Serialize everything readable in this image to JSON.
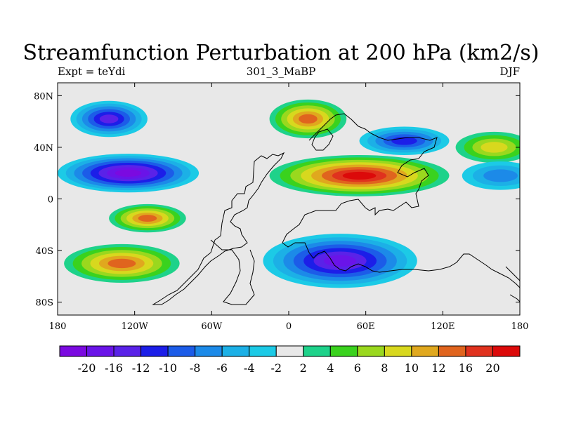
{
  "title": "Streamfunction Perturbation at 200 hPa (km2/s)",
  "subtitle_left": "Expt = teYdi",
  "subtitle_center": "301_3_MaBP",
  "subtitle_right": "DJF",
  "chart_data": {
    "type": "heatmap",
    "title": "Streamfunction Perturbation at 200 hPa (km2/s)",
    "variable": "Streamfunction Perturbation",
    "level": "200 hPa",
    "units": "km2/s",
    "season": "DJF",
    "experiment": "teYdi",
    "dataset": "301_3_MaBP",
    "lon_range": [
      -180,
      180
    ],
    "lat_range": [
      -90,
      90
    ],
    "x_ticks": [
      {
        "value": -180,
        "label": "180"
      },
      {
        "value": -120,
        "label": "120W"
      },
      {
        "value": -60,
        "label": "60W"
      },
      {
        "value": 0,
        "label": "0"
      },
      {
        "value": 60,
        "label": "60E"
      },
      {
        "value": 120,
        "label": "120E"
      },
      {
        "value": 180,
        "label": "180"
      }
    ],
    "y_ticks": [
      {
        "value": 80,
        "label": "80N"
      },
      {
        "value": 40,
        "label": "40N"
      },
      {
        "value": 0,
        "label": "0"
      },
      {
        "value": -40,
        "label": "40S"
      },
      {
        "value": -80,
        "label": "80S"
      }
    ],
    "colorbar_levels": [
      -20,
      -16,
      -12,
      -10,
      -8,
      -6,
      -4,
      -2,
      2,
      4,
      6,
      8,
      10,
      12,
      16,
      20
    ],
    "colorbar_labels": [
      "-20",
      "-16",
      "-12",
      "-10",
      "-8",
      "-6",
      "-4",
      "-2",
      "2",
      "4",
      "6",
      "8",
      "10",
      "12",
      "16",
      "20"
    ],
    "colors": [
      "#7b0ae0",
      "#6a14e8",
      "#5a22e8",
      "#1c1ee8",
      "#1c5ce8",
      "#1c8ae8",
      "#1cb0e6",
      "#1ccae6",
      "#e8e8e8",
      "#1ed28a",
      "#3ad21e",
      "#9ad81e",
      "#d8d81e",
      "#e0a81e",
      "#e0641e",
      "#e0321e",
      "#dc0a0a"
    ],
    "features": [
      {
        "name": "north-pacific-low",
        "lon": -140,
        "lat": 62,
        "value": -13
      },
      {
        "name": "tropical-east-pacific-low",
        "lon": -125,
        "lat": 20,
        "value": -21
      },
      {
        "name": "south-pacific-high",
        "lon": -110,
        "lat": -15,
        "value": 13
      },
      {
        "name": "south-east-pacific-high",
        "lon": -130,
        "lat": -50,
        "value": 13
      },
      {
        "name": "north-atlantic-high",
        "lon": 15,
        "lat": 62,
        "value": 13
      },
      {
        "name": "north-african-asian-high",
        "lon": 55,
        "lat": 18,
        "value": 21
      },
      {
        "name": "west-siberian-low",
        "lon": 90,
        "lat": 45,
        "value": -11
      },
      {
        "name": "south-atlantic-indian-low",
        "lon": 40,
        "lat": -48,
        "value": -17
      },
      {
        "name": "north-west-pacific-high",
        "lon": 160,
        "lat": 40,
        "value": 9
      },
      {
        "name": "tropical-west-pacific-low",
        "lon": 165,
        "lat": 18,
        "value": -6
      }
    ]
  }
}
